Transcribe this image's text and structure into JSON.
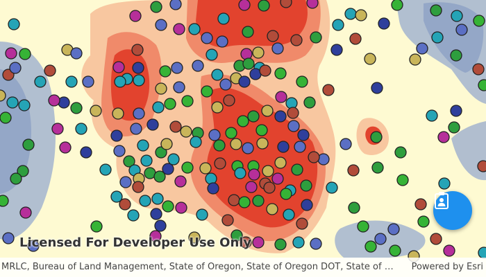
{
  "map": {
    "license_text": "Licensed For Developer Use Only",
    "attribution": "MRLC, Bureau of Land Management, State of Oregon, State of Oregon DOT, State of Oreg...",
    "powered_by": "Powered by Esri",
    "fab": {
      "icon": "clipboard-user-icon",
      "color": "#1e90ee"
    },
    "heatmap_colors": {
      "background": "#fefad2",
      "cold": "#a9b8cf",
      "cold_inner": "#8fa2c6",
      "warm": "#f8c7a0",
      "hot": "#f08a6a",
      "hottest": "#e2432e"
    },
    "point_colors": [
      "#2e9e3e",
      "#5b6fc4",
      "#c9b55a",
      "#25a4b6",
      "#b62f9a",
      "#36b336",
      "#2f3f9c",
      "#b14c3a"
    ]
  }
}
